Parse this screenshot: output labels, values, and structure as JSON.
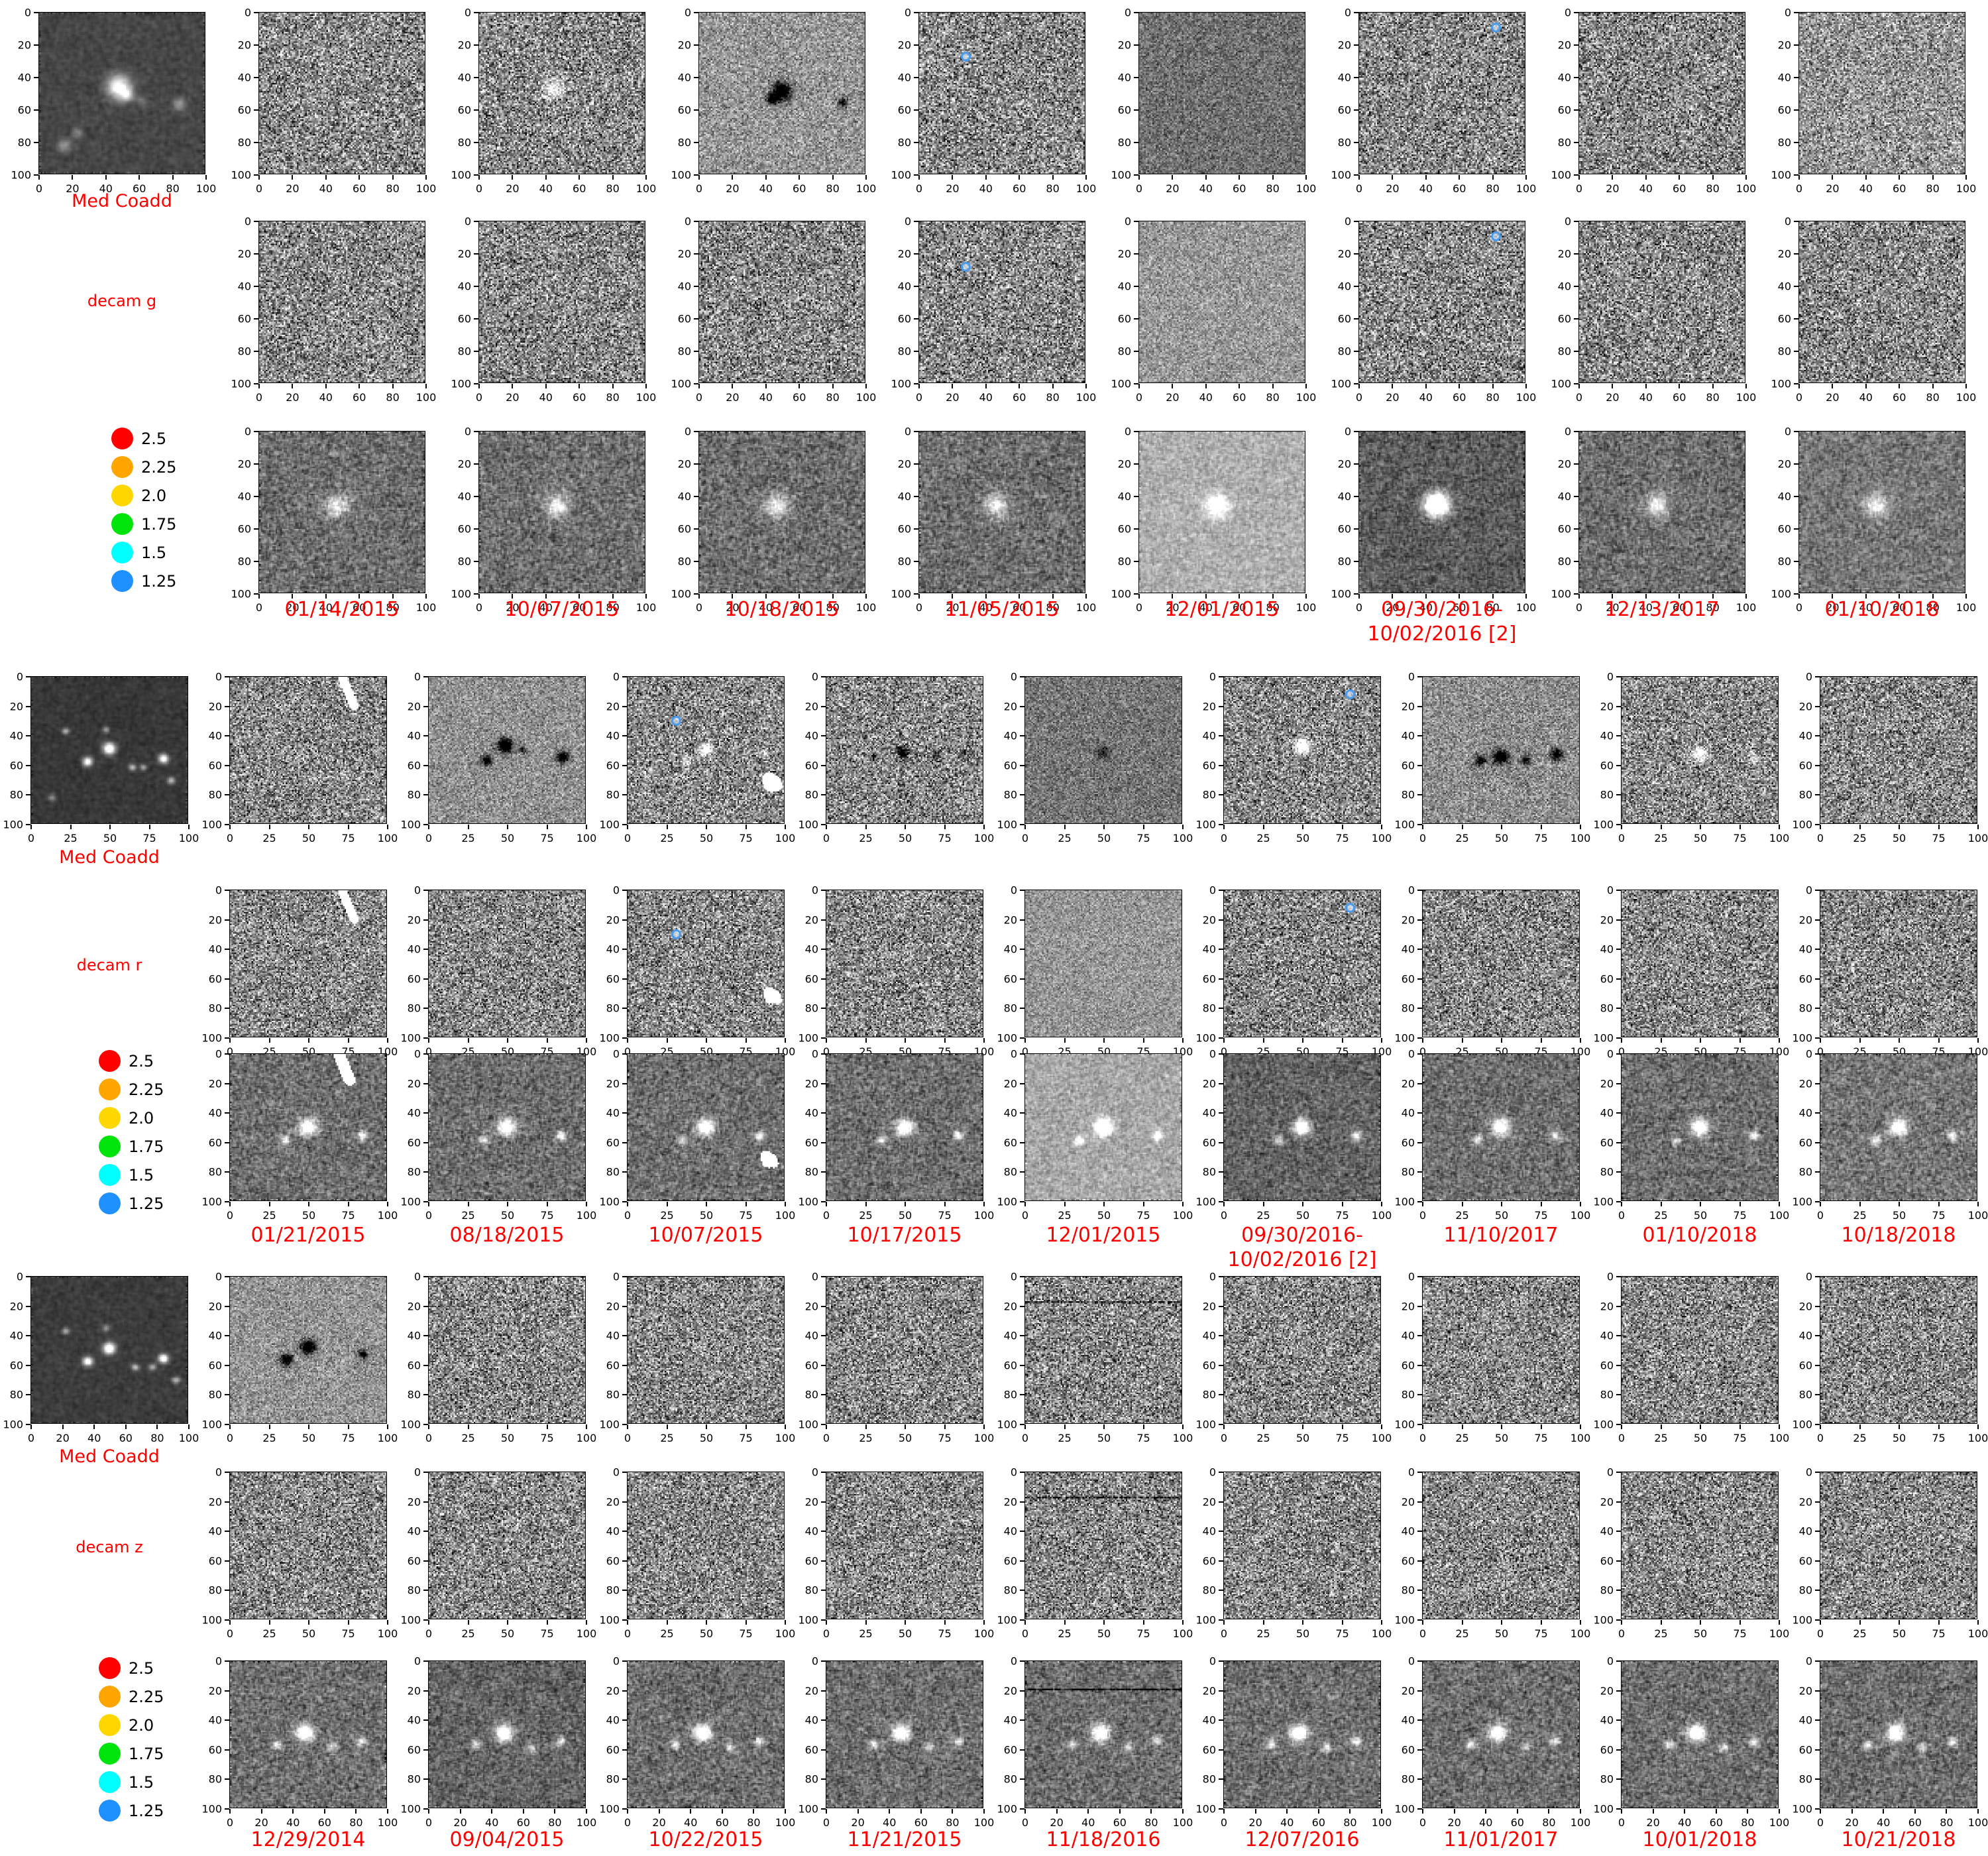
{
  "figure": {
    "background": "#ffffff",
    "accent_color": "#ff0000",
    "tick_color": "#000000",
    "marker_color": "#4a9bed"
  },
  "legend": {
    "items": [
      {
        "label": "2.5",
        "color": "#ff0000"
      },
      {
        "label": "2.25",
        "color": "#ffa500"
      },
      {
        "label": "2.0",
        "color": "#ffd700"
      },
      {
        "label": "1.75",
        "color": "#00e30b"
      },
      {
        "label": "1.5",
        "color": "#00ffff"
      },
      {
        "label": "1.25",
        "color": "#1e90ff"
      }
    ]
  },
  "chart_data": {
    "type": "heatmap",
    "title": "",
    "description_of_panels": "grid of grayscale image cutouts: per band a median coadd plus template-difference and science epochs",
    "bands": [
      "decam g",
      "decam r",
      "decam z"
    ],
    "rows_per_band": 3,
    "axis_range": [
      0,
      100
    ],
    "epochs": {
      "decam g": [
        "01/14/2015",
        "10/07/2015",
        "10/18/2015",
        "11/05/2015",
        "12/01/2015",
        "09/30/2016-10/02/2016 [2]",
        "12/13/2017",
        "01/10/2018"
      ],
      "decam r": [
        "01/21/2015",
        "08/18/2015",
        "10/07/2015",
        "10/17/2015",
        "12/01/2015",
        "09/30/2016-10/02/2016 [2]",
        "11/10/2017",
        "01/10/2018",
        "10/18/2018"
      ],
      "decam z": [
        "12/29/2014",
        "09/04/2015",
        "10/22/2015",
        "11/21/2015",
        "11/18/2016",
        "12/07/2016",
        "11/01/2017",
        "10/01/2018",
        "10/21/2018"
      ]
    },
    "legend_values": [
      2.5,
      2.25,
      2.0,
      1.75,
      1.5,
      1.25
    ]
  },
  "bands": [
    {
      "id": "g",
      "label": "decam g",
      "coadd_label": "Med Coadd",
      "yticks": [
        "0",
        "20",
        "40",
        "60",
        "80",
        "100"
      ],
      "xticks": {
        "coadd": [
          "0",
          "20",
          "40",
          "60",
          "80",
          "100"
        ],
        "rows": [
          [
            "0",
            "20",
            "40",
            "60",
            "80",
            "100"
          ],
          [
            "0",
            "20",
            "40",
            "60",
            "80",
            "100"
          ],
          [
            "0",
            "20",
            "40",
            "60",
            "80",
            "100"
          ]
        ]
      },
      "dates": [
        [
          "01/14/2015"
        ],
        [
          "10/07/2015"
        ],
        [
          "10/18/2015"
        ],
        [
          "11/05/2015"
        ],
        [
          "12/01/2015"
        ],
        [
          "09/30/2016-",
          "10/02/2016 [2]"
        ],
        [
          "12/13/2017"
        ],
        [
          "01/10/2018"
        ]
      ],
      "coadd": {
        "tone": {
          "bg": 70,
          "amp": 26,
          "smooth": 0.65
        },
        "f": [
          [
            "wb",
            48,
            46,
            9,
            0.8
          ],
          [
            "wb",
            53,
            51,
            5,
            0.5
          ],
          [
            "wb",
            85,
            57,
            5,
            0.32
          ],
          [
            "wb",
            15,
            83,
            5,
            0.3
          ],
          [
            "wb",
            23,
            75,
            4,
            0.25
          ],
          [
            "wb",
            62,
            55,
            4,
            0.18
          ]
        ]
      },
      "sci_default": [
        [
          "wb",
          47,
          46,
          9,
          0.55
        ]
      ],
      "panels": {
        "0-1": {
          "f": [
            [
              "wb",
              45,
              47,
              8,
              0.5
            ]
          ]
        },
        "0-2": {
          "tone": {
            "bg": 150,
            "amp": 48
          },
          "f": [
            [
              "bb",
              50,
              49,
              7,
              1.0
            ],
            [
              "bb",
              44,
              54,
              4,
              0.8
            ],
            [
              "bb",
              87,
              56,
              4,
              0.55
            ]
          ]
        },
        "0-3": {
          "m": [
            [
              28,
              27
            ]
          ]
        },
        "0-4": {
          "tone": {
            "bg": 112,
            "amp": 40
          }
        },
        "0-5": {
          "m": [
            [
              82,
              9
            ]
          ]
        },
        "0-7": {
          "tone": {
            "bg": 150,
            "amp": 70
          }
        },
        "1-3": {
          "m": [
            [
              28,
              28
            ]
          ]
        },
        "1-4": {
          "tone": {
            "bg": 152,
            "amp": 42
          }
        },
        "1-5": {
          "m": [
            [
              82,
              9
            ]
          ]
        },
        "2-4": {
          "tone": {
            "bg": 175,
            "amp": 42
          }
        },
        "2-5": {
          "tone": {
            "bg": 92,
            "amp": 52
          },
          "f": [
            [
              "wb",
              47,
              45,
              9,
              0.75
            ]
          ]
        },
        "2-7": {
          "tone": {
            "bg": 118,
            "amp": 55
          }
        }
      }
    },
    {
      "id": "r",
      "label": "decam r",
      "coadd_label": "Med Coadd",
      "yticks": [
        "0",
        "20",
        "40",
        "60",
        "80",
        "100"
      ],
      "xticks": {
        "coadd": [
          "0",
          "25",
          "50",
          "75",
          "100"
        ],
        "rows": [
          [
            "0",
            "25",
            "50",
            "75",
            "100"
          ],
          [
            "0",
            "25",
            "50",
            "75",
            "100"
          ],
          [
            "0",
            "25",
            "50",
            "75",
            "100"
          ]
        ]
      },
      "dates": [
        [
          "01/21/2015"
        ],
        [
          "08/18/2015"
        ],
        [
          "10/07/2015"
        ],
        [
          "10/17/2015"
        ],
        [
          "12/01/2015"
        ],
        [
          "09/30/2016-",
          "10/02/2016 [2]"
        ],
        [
          "11/10/2017"
        ],
        [
          "01/10/2018"
        ],
        [
          "10/18/2018"
        ]
      ],
      "coadd": {
        "tone": {
          "bg": 55,
          "amp": 22,
          "smooth": 0.65
        },
        "f": [
          [
            "wb",
            50,
            49,
            5,
            1.0
          ],
          [
            "wb",
            36,
            58,
            4,
            0.85
          ],
          [
            "wb",
            85,
            56,
            4,
            0.9
          ],
          [
            "wb",
            65,
            62,
            3,
            0.5
          ],
          [
            "wb",
            90,
            71,
            3,
            0.55
          ],
          [
            "wb",
            22,
            37,
            3,
            0.45
          ],
          [
            "wb",
            13,
            83,
            3,
            0.35
          ],
          [
            "wb",
            48,
            36,
            3,
            0.4
          ],
          [
            "wb",
            72,
            62,
            3,
            0.4
          ]
        ]
      },
      "sci_default": [
        [
          "wb",
          50,
          50,
          7,
          0.9
        ],
        [
          "wb",
          35,
          59,
          4,
          0.5
        ],
        [
          "wb",
          85,
          56,
          4,
          0.6
        ]
      ],
      "panels": {
        "0-0": {
          "f": [
            [
              "st",
              72,
              0,
              80,
              20,
              3
            ]
          ]
        },
        "0-1": {
          "tone": {
            "bg": 145,
            "amp": 45
          },
          "f": [
            [
              "bb",
              49,
              47,
              6,
              1.0
            ],
            [
              "bb",
              37,
              57,
              4,
              0.85
            ],
            [
              "bb",
              86,
              55,
              5,
              0.8
            ],
            [
              "bb",
              60,
              50,
              3,
              0.5
            ]
          ]
        },
        "0-2": {
          "f": [
            [
              "wb",
              50,
              50,
              5,
              0.85
            ],
            [
              "wb",
              37,
              58,
              3,
              0.5
            ],
            [
              "wb",
              88,
              52,
              3,
              0.4
            ],
            [
              "wp",
              93,
              73,
              6
            ]
          ],
          "m": [
            [
              31,
              30
            ]
          ]
        },
        "0-3": {
          "f": [
            [
              "bb",
              49,
              52,
              5,
              0.9
            ],
            [
              "bb",
              30,
              55,
              3,
              0.5
            ],
            [
              "bb",
              70,
              53,
              3,
              0.45
            ],
            [
              "bb",
              88,
              52,
              3,
              0.4
            ]
          ]
        },
        "0-4": {
          "tone": {
            "bg": 118,
            "amp": 42
          },
          "f": [
            [
              "bb",
              50,
              52,
              5,
              0.4
            ]
          ]
        },
        "0-5": {
          "f": [
            [
              "wb",
              50,
              47,
              6,
              0.9
            ]
          ],
          "m": [
            [
              80,
              12
            ]
          ]
        },
        "0-6": {
          "tone": {
            "bg": 142,
            "amp": 48
          },
          "f": [
            [
              "bb",
              50,
              55,
              6,
              0.95
            ],
            [
              "bb",
              37,
              57,
              4,
              0.8
            ],
            [
              "bb",
              66,
              57,
              4,
              0.6
            ],
            [
              "bb",
              86,
              53,
              5,
              0.75
            ]
          ]
        },
        "0-7": {
          "f": [
            [
              "wb",
              50,
              53,
              6,
              0.75
            ],
            [
              "wb",
              85,
              57,
              4,
              0.4
            ]
          ]
        },
        "1-0": {
          "f": [
            [
              "st",
              72,
              0,
              80,
              20,
              3
            ]
          ]
        },
        "1-2": {
          "f": [
            [
              "wp",
              93,
              73,
              5
            ]
          ],
          "m": [
            [
              31,
              30
            ]
          ]
        },
        "1-4": {
          "tone": {
            "bg": 150,
            "amp": 40
          }
        },
        "1-5": {
          "m": [
            [
              80,
              12
            ]
          ]
        },
        "2-0": {
          "f": [
            [
              "st",
              70,
              0,
              77,
              18,
              4
            ]
          ]
        },
        "2-2": {
          "f": [
            [
              "wp",
              91,
              73,
              5
            ]
          ]
        },
        "2-4": {
          "tone": {
            "bg": 168,
            "amp": 44
          }
        },
        "2-5": {
          "tone": {
            "bg": 100,
            "amp": 54
          }
        },
        "2-8": {
          "tone": {
            "bg": 118,
            "amp": 62
          }
        }
      }
    },
    {
      "id": "z",
      "label": "decam z",
      "coadd_label": "Med Coadd",
      "yticks": [
        "0",
        "20",
        "40",
        "60",
        "80",
        "100"
      ],
      "xticks": {
        "coadd": [
          "0",
          "20",
          "40",
          "60",
          "80",
          "100"
        ],
        "rows": [
          [
            "0",
            "25",
            "50",
            "75",
            "100"
          ],
          [
            "0",
            "25",
            "50",
            "75",
            "100"
          ],
          [
            "0",
            "20",
            "40",
            "60",
            "80",
            "100"
          ]
        ]
      },
      "dates": [
        [
          "12/29/2014"
        ],
        [
          "09/04/2015"
        ],
        [
          "10/22/2015"
        ],
        [
          "11/21/2015"
        ],
        [
          "11/18/2016"
        ],
        [
          "12/07/2016"
        ],
        [
          "11/01/2017"
        ],
        [
          "10/01/2018"
        ],
        [
          "10/21/2018"
        ]
      ],
      "coadd": {
        "tone": {
          "bg": 60,
          "amp": 24,
          "smooth": 0.65
        },
        "f": [
          [
            "wb",
            50,
            49,
            5,
            1.0
          ],
          [
            "wb",
            36,
            58,
            4,
            0.9
          ],
          [
            "wb",
            85,
            56,
            4,
            0.95
          ],
          [
            "wb",
            67,
            62,
            3,
            0.5
          ],
          [
            "wb",
            78,
            62,
            3,
            0.45
          ],
          [
            "wb",
            93,
            71,
            3,
            0.5
          ],
          [
            "wb",
            22,
            37,
            3,
            0.4
          ],
          [
            "wb",
            48,
            35,
            3,
            0.35
          ]
        ]
      },
      "sci_default": [
        [
          "wb",
          48,
          49,
          7,
          0.95
        ],
        [
          "wb",
          30,
          57,
          4,
          0.5
        ],
        [
          "wb",
          66,
          59,
          4,
          0.45
        ],
        [
          "wb",
          85,
          55,
          4,
          0.55
        ]
      ],
      "panels": {
        "0-0": {
          "tone": {
            "bg": 148,
            "amp": 45
          },
          "f": [
            [
              "bb",
              50,
              48,
              6,
              0.95
            ],
            [
              "bb",
              36,
              57,
              5,
              0.8
            ],
            [
              "bb",
              86,
              53,
              4,
              0.7
            ]
          ]
        },
        "0-4": {
          "f": [
            [
              "ln",
              17
            ]
          ]
        },
        "1-4": {
          "f": [
            [
              "ln",
              17
            ]
          ]
        },
        "2-1": {
          "tone": {
            "bg": 100,
            "amp": 54
          }
        },
        "2-4": {
          "f": [
            [
              "ln",
              19
            ]
          ]
        }
      }
    }
  ]
}
